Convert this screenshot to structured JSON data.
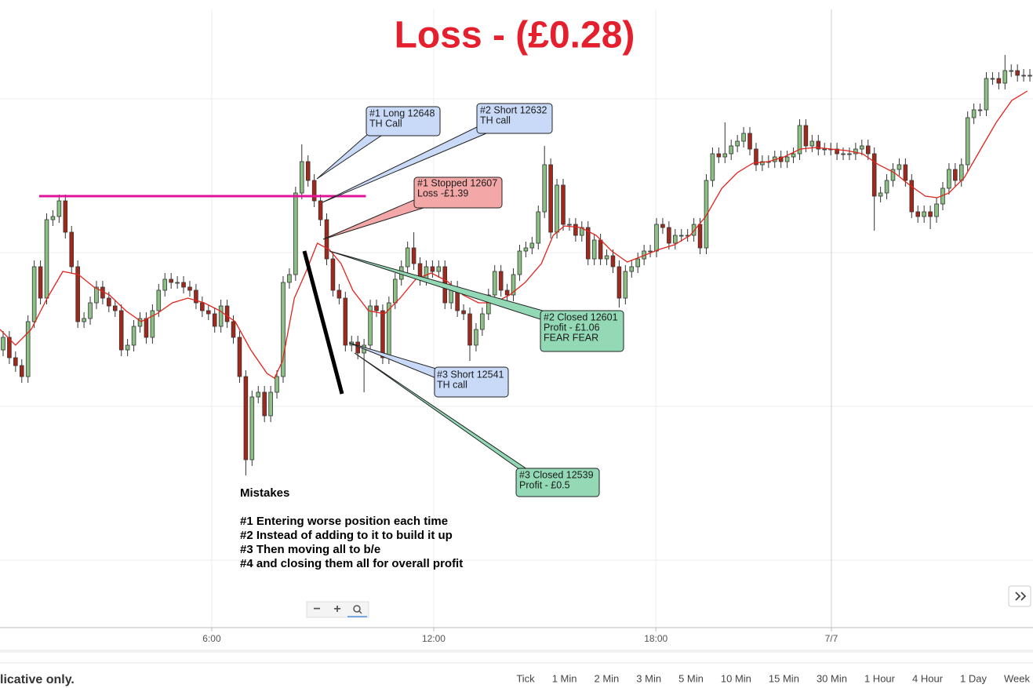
{
  "chart_data": {
    "type": "candlestick",
    "title": "Loss - (£0.28)",
    "xlim": [
      0,
      166
    ],
    "ylim": [
      12368,
      12768
    ],
    "xticks": [
      {
        "value": 34.03,
        "label": "6:00"
      },
      {
        "value": 69.7,
        "label": "12:00"
      },
      {
        "value": 105.4,
        "label": "18:00"
      },
      {
        "value": 133.6,
        "label": "7/7"
      }
    ],
    "ygrid": [
      12705,
      12607,
      12509,
      12411
    ],
    "up_color": "#8cc084",
    "down_color": "#a3281c",
    "open": [
      12545,
      12553,
      12540,
      12535,
      12528,
      12563,
      12598,
      12578,
      12628,
      12630,
      12640,
      12620,
      12598,
      12563,
      12565,
      12575,
      12585,
      12578,
      12573,
      12570,
      12545,
      12548,
      12560,
      12565,
      12553,
      12570,
      12583,
      12590,
      12588,
      12588,
      12585,
      12583,
      12575,
      12570,
      12568,
      12560,
      12573,
      12563,
      12553,
      12528,
      12475,
      12515,
      12518,
      12503,
      12518,
      12528,
      12588,
      12593,
      12645,
      12665,
      12653,
      12640,
      12628,
      12603,
      12583,
      12578,
      12548,
      12550,
      12543,
      12548,
      12573,
      12570,
      12540,
      12575,
      12590,
      12598,
      12610,
      12600,
      12590,
      12598,
      12595,
      12598,
      12575,
      12585,
      12570,
      12568,
      12548,
      12558,
      12568,
      12580,
      12595,
      12583,
      12580,
      12593,
      12608,
      12610,
      12613,
      12633,
      12663,
      12620,
      12650,
      12625,
      12625,
      12618,
      12623,
      12603,
      12615,
      12603,
      12605,
      12598,
      12578,
      12595,
      12598,
      12603,
      12608,
      12608,
      12625,
      12623,
      12613,
      12618,
      12618,
      12618,
      12625,
      12610,
      12653,
      12670,
      12668,
      12670,
      12675,
      12678,
      12683,
      12673,
      12663,
      12665,
      12665,
      12668,
      12665,
      12668,
      12670,
      12688,
      12675,
      12678,
      12673,
      12673,
      12673,
      12670,
      12670,
      12670,
      12673,
      12675,
      12670,
      12643,
      12645,
      12653,
      12660,
      12663,
      12653,
      12633,
      12630,
      12633,
      12630,
      12638,
      12648,
      12660,
      12653,
      12663,
      12693,
      12698,
      12698,
      12718,
      12718,
      12715,
      12723,
      12723,
      12720,
      12720
    ],
    "high": [
      12557,
      12557,
      12544,
      12539,
      12567,
      12602,
      12602,
      12632,
      12634,
      12644,
      12644,
      12624,
      12602,
      12569,
      12579,
      12589,
      12589,
      12582,
      12577,
      12574,
      12552,
      12564,
      12569,
      12569,
      12574,
      12587,
      12594,
      12594,
      12592,
      12592,
      12589,
      12587,
      12579,
      12574,
      12572,
      12577,
      12577,
      12567,
      12557,
      12532,
      12519,
      12522,
      12522,
      12522,
      12532,
      12592,
      12597,
      12649,
      12676,
      12669,
      12657,
      12644,
      12632,
      12607,
      12587,
      12582,
      12554,
      12554,
      12552,
      12577,
      12577,
      12574,
      12579,
      12594,
      12602,
      12614,
      12620,
      12604,
      12602,
      12602,
      12602,
      12602,
      12589,
      12589,
      12574,
      12572,
      12562,
      12572,
      12584,
      12599,
      12599,
      12587,
      12597,
      12612,
      12614,
      12617,
      12637,
      12675,
      12667,
      12654,
      12654,
      12629,
      12629,
      12627,
      12627,
      12619,
      12619,
      12609,
      12609,
      12602,
      12599,
      12602,
      12607,
      12612,
      12612,
      12629,
      12629,
      12627,
      12622,
      12622,
      12622,
      12629,
      12629,
      12657,
      12674,
      12674,
      12690,
      12679,
      12682,
      12687,
      12687,
      12677,
      12669,
      12669,
      12672,
      12672,
      12672,
      12674,
      12692,
      12692,
      12682,
      12682,
      12677,
      12677,
      12677,
      12674,
      12674,
      12677,
      12679,
      12679,
      12674,
      12649,
      12657,
      12664,
      12667,
      12667,
      12657,
      12637,
      12637,
      12637,
      12642,
      12652,
      12664,
      12664,
      12667,
      12697,
      12702,
      12702,
      12722,
      12722,
      12722,
      12733,
      12727,
      12727,
      12724,
      12724
    ],
    "low": [
      12541,
      12536,
      12531,
      12524,
      12524,
      12559,
      12574,
      12574,
      12624,
      12626,
      12616,
      12594,
      12559,
      12559,
      12561,
      12571,
      12574,
      12569,
      12566,
      12541,
      12541,
      12544,
      12556,
      12549,
      12549,
      12566,
      12579,
      12584,
      12584,
      12581,
      12579,
      12571,
      12566,
      12564,
      12556,
      12556,
      12559,
      12549,
      12524,
      12465,
      12471,
      12511,
      12499,
      12499,
      12514,
      12524,
      12584,
      12589,
      12641,
      12649,
      12636,
      12624,
      12599,
      12579,
      12574,
      12544,
      12544,
      12539,
      12518,
      12544,
      12566,
      12536,
      12536,
      12571,
      12586,
      12594,
      12596,
      12586,
      12586,
      12591,
      12591,
      12571,
      12571,
      12566,
      12564,
      12538,
      12544,
      12554,
      12564,
      12576,
      12579,
      12576,
      12576,
      12589,
      12604,
      12606,
      12609,
      12629,
      12616,
      12616,
      12621,
      12621,
      12614,
      12614,
      12599,
      12599,
      12599,
      12599,
      12594,
      12572,
      12574,
      12591,
      12594,
      12599,
      12604,
      12604,
      12619,
      12609,
      12609,
      12614,
      12614,
      12614,
      12606,
      12606,
      12649,
      12664,
      12664,
      12666,
      12671,
      12674,
      12669,
      12659,
      12659,
      12661,
      12661,
      12661,
      12661,
      12664,
      12666,
      12671,
      12671,
      12669,
      12669,
      12669,
      12666,
      12666,
      12666,
      12666,
      12669,
      12666,
      12621,
      12639,
      12641,
      12649,
      12656,
      12649,
      12629,
      12626,
      12626,
      12622,
      12626,
      12634,
      12644,
      12649,
      12649,
      12659,
      12689,
      12694,
      12694,
      12714,
      12711,
      12711,
      12719,
      12716,
      12716,
      12716
    ],
    "close": [
      12553,
      12540,
      12535,
      12528,
      12563,
      12598,
      12578,
      12628,
      12630,
      12640,
      12620,
      12598,
      12563,
      12565,
      12575,
      12585,
      12578,
      12573,
      12570,
      12545,
      12548,
      12560,
      12565,
      12553,
      12570,
      12583,
      12590,
      12588,
      12588,
      12585,
      12583,
      12575,
      12570,
      12568,
      12560,
      12573,
      12563,
      12553,
      12528,
      12475,
      12515,
      12518,
      12503,
      12518,
      12528,
      12588,
      12593,
      12645,
      12665,
      12653,
      12640,
      12628,
      12603,
      12583,
      12578,
      12548,
      12550,
      12543,
      12548,
      12573,
      12570,
      12540,
      12575,
      12590,
      12598,
      12610,
      12600,
      12590,
      12598,
      12595,
      12598,
      12575,
      12585,
      12570,
      12568,
      12548,
      12558,
      12568,
      12580,
      12595,
      12583,
      12580,
      12593,
      12608,
      12610,
      12613,
      12633,
      12663,
      12620,
      12650,
      12625,
      12625,
      12618,
      12623,
      12603,
      12615,
      12603,
      12605,
      12598,
      12578,
      12595,
      12598,
      12603,
      12608,
      12608,
      12625,
      12623,
      12613,
      12618,
      12618,
      12618,
      12625,
      12610,
      12653,
      12670,
      12668,
      12670,
      12675,
      12678,
      12683,
      12673,
      12663,
      12665,
      12665,
      12668,
      12665,
      12668,
      12670,
      12688,
      12675,
      12678,
      12673,
      12673,
      12673,
      12670,
      12670,
      12670,
      12673,
      12675,
      12670,
      12643,
      12645,
      12653,
      12660,
      12663,
      12653,
      12633,
      12630,
      12633,
      12630,
      12638,
      12648,
      12660,
      12653,
      12663,
      12693,
      12698,
      12698,
      12718,
      12718,
      12715,
      12723,
      12723,
      12720,
      12720,
      12720
    ],
    "ma": {
      "color": "#e3231c",
      "x": [
        0,
        2.5,
        5,
        7.6,
        10.1,
        12.6,
        15.1,
        17.6,
        20.2,
        22.7,
        25.2,
        27.7,
        30.2,
        32.8,
        35.3,
        37.8,
        40.3,
        42.9,
        44.1,
        45.4,
        47.3,
        49.2,
        51,
        52.9,
        54.8,
        56.7,
        59.2,
        61.8,
        64.3,
        66.8,
        69.3,
        71.8,
        74.4,
        76.9,
        79.4,
        81.9,
        84.4,
        87,
        88.9,
        90.7,
        93.3,
        95.8,
        98.3,
        100.8,
        103.4,
        105.9,
        108.4,
        110.9,
        113.4,
        116,
        118.5,
        121,
        123.5,
        126,
        128.6,
        131.1,
        133.6,
        136.1,
        138.6,
        141.2,
        143.7,
        146.2,
        148.7,
        150.6,
        152.5,
        155,
        157.6,
        160.1,
        162.6,
        165.1
      ],
      "values": [
        12558,
        12548,
        12558,
        12578,
        12595,
        12593,
        12585,
        12580,
        12570,
        12563,
        12568,
        12575,
        12578,
        12575,
        12570,
        12563,
        12545,
        12530,
        12527,
        12538,
        12578,
        12595,
        12613,
        12609,
        12600,
        12583,
        12570,
        12568,
        12578,
        12590,
        12594,
        12589,
        12580,
        12575,
        12575,
        12580,
        12588,
        12600,
        12618,
        12624,
        12623,
        12618,
        12608,
        12601,
        12605,
        12609,
        12612,
        12618,
        12630,
        12648,
        12658,
        12664,
        12665,
        12668,
        12673,
        12674,
        12673,
        12672,
        12670,
        12663,
        12658,
        12650,
        12643,
        12642,
        12645,
        12655,
        12673,
        12690,
        12704,
        12710
      ]
    },
    "hline": {
      "value": 12643,
      "from": 6.3,
      "to": 58.8,
      "color": "#e0169a"
    },
    "annotations": [
      {
        "lines": [
          "#1 Long 12648",
          "TH Call"
        ]
      },
      {
        "lines": [
          "#2 Short 12632",
          "TH call"
        ]
      },
      {
        "lines": [
          "#1 Stopped 12607",
          "Loss -£1.39"
        ]
      },
      {
        "lines": [
          "#2 Closed 12601",
          "Profit - £1.06",
          "FEAR FEAR"
        ]
      },
      {
        "lines": [
          "#3 Short 12541",
          "TH call"
        ]
      },
      {
        "lines": [
          "#3 Closed 12539",
          "Profit - £0.5"
        ]
      }
    ],
    "notes": {
      "heading": "Mistakes",
      "items": [
        "#1  Entering worse position each time",
        "#2  Instead of adding to it to build it up",
        "#3  Then moving all to b/e",
        "#4  and closing them all for overall profit"
      ]
    }
  },
  "controls": {
    "zoom_out": "−",
    "zoom_in": "+"
  },
  "footer": {
    "disclaimer": "licative only.",
    "timeframes": [
      "Tick",
      "1 Min",
      "2 Min",
      "3 Min",
      "5 Min",
      "10 Min",
      "15 Min",
      "30 Min",
      "1 Hour",
      "4 Hour",
      "1 Day",
      "Week"
    ]
  }
}
